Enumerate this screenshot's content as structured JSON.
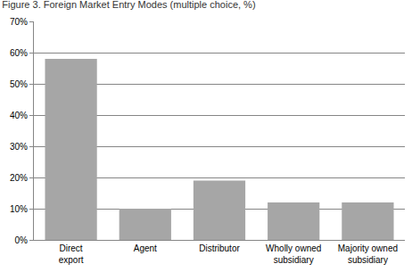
{
  "chart_data": {
    "type": "bar",
    "title": "Figure 3. Foreign Market Entry Modes (multiple choice, %)",
    "categories": [
      "Direct export",
      "Agent",
      "Distributor",
      "Wholly owned subsidiary",
      "Majority owned subsidiary"
    ],
    "values": [
      58,
      10,
      19,
      12,
      12
    ],
    "color": "#a6a6a6",
    "ylim": [
      0,
      70
    ],
    "yticks": [
      {
        "value": 0,
        "label": "0%"
      },
      {
        "value": 10,
        "label": "10%"
      },
      {
        "value": 20,
        "label": "20%"
      },
      {
        "value": 30,
        "label": "30%"
      },
      {
        "value": 40,
        "label": "40%"
      },
      {
        "value": 50,
        "label": "50%"
      },
      {
        "value": 60,
        "label": "60%"
      },
      {
        "value": 70,
        "label": "70%"
      }
    ],
    "grid": true
  }
}
